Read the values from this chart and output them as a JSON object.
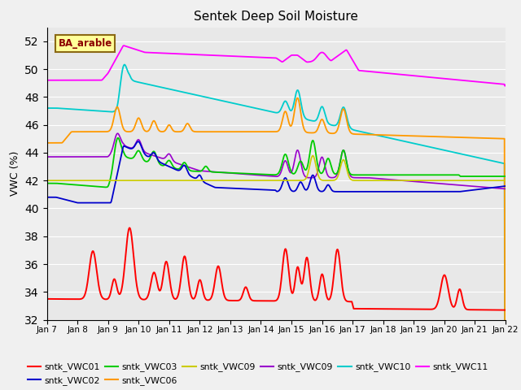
{
  "title": "Sentek Deep Soil Moisture",
  "ylabel": "VWC (%)",
  "ylim": [
    32,
    53
  ],
  "yticks": [
    32,
    34,
    36,
    38,
    40,
    42,
    44,
    46,
    48,
    50,
    52
  ],
  "xlabel_dates": [
    "Jan 7",
    "Jan 8",
    "Jan 9",
    "Jan 10",
    "Jan 11",
    "Jan 12",
    "Jan 13",
    "Jan 14",
    "Jan 15",
    "Jan 16",
    "Jan 17",
    "Jan 18",
    "Jan 19",
    "Jan 20",
    "Jan 21",
    "Jan 22"
  ],
  "annotation_text": "BA_arable",
  "annotation_color": "#8B0000",
  "annotation_bg": "#FFFF99",
  "annotation_border": "#8B6914",
  "plot_bg": "#E8E8E8",
  "fig_bg": "#F0F0F0",
  "grid_color": "#FFFFFF",
  "legend_labels": [
    "sntk_VWC01",
    "sntk_VWC02",
    "sntk_VWC03",
    "sntk_VWC06",
    "sntk_VWC09",
    "sntk_VWC09",
    "sntk_VWC10",
    "sntk_VWC11"
  ],
  "legend_colors": [
    "#FF0000",
    "#0000CC",
    "#00CC00",
    "#FF9900",
    "#CCCC00",
    "#9900CC",
    "#00CCCC",
    "#FF00FF"
  ]
}
